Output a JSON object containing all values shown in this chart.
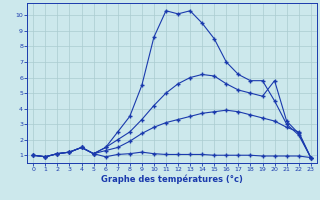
{
  "xlabel": "Graphe des températures (°c)",
  "bg_color": "#cce8ec",
  "line_color": "#1a3aad",
  "grid_color": "#aaccd0",
  "xlim": [
    -0.5,
    23.5
  ],
  "ylim": [
    0.5,
    10.8
  ],
  "xticks": [
    0,
    1,
    2,
    3,
    4,
    5,
    6,
    7,
    8,
    9,
    10,
    11,
    12,
    13,
    14,
    15,
    16,
    17,
    18,
    19,
    20,
    21,
    22,
    23
  ],
  "yticks": [
    1,
    2,
    3,
    4,
    5,
    6,
    7,
    8,
    9,
    10
  ],
  "line1_x": [
    0,
    1,
    2,
    3,
    4,
    5,
    6,
    7,
    8,
    9,
    10,
    11,
    12,
    13,
    14,
    15,
    16,
    17,
    18,
    19,
    20,
    21,
    22,
    23
  ],
  "line1_y": [
    1.0,
    0.9,
    1.1,
    1.2,
    1.5,
    1.1,
    0.9,
    1.05,
    1.1,
    1.2,
    1.1,
    1.05,
    1.05,
    1.05,
    1.05,
    1.0,
    1.0,
    1.0,
    1.0,
    0.95,
    0.95,
    0.95,
    0.95,
    0.85
  ],
  "line2_x": [
    0,
    1,
    2,
    3,
    4,
    5,
    6,
    7,
    8,
    9,
    10,
    11,
    12,
    13,
    14,
    15,
    16,
    17,
    18,
    19,
    20,
    21,
    22,
    23
  ],
  "line2_y": [
    1.0,
    0.9,
    1.1,
    1.2,
    1.5,
    1.1,
    1.3,
    1.5,
    1.9,
    2.4,
    2.8,
    3.1,
    3.3,
    3.5,
    3.7,
    3.8,
    3.9,
    3.8,
    3.6,
    3.4,
    3.2,
    2.8,
    2.5,
    0.85
  ],
  "line3_x": [
    0,
    1,
    2,
    3,
    4,
    5,
    6,
    7,
    8,
    9,
    10,
    11,
    12,
    13,
    14,
    15,
    16,
    17,
    18,
    19,
    20,
    21,
    22,
    23
  ],
  "line3_y": [
    1.0,
    0.9,
    1.1,
    1.2,
    1.5,
    1.1,
    1.5,
    2.0,
    2.5,
    3.3,
    4.2,
    5.0,
    5.6,
    6.0,
    6.2,
    6.1,
    5.6,
    5.2,
    5.0,
    4.8,
    5.8,
    3.2,
    2.4,
    0.85
  ],
  "line4_x": [
    0,
    1,
    2,
    3,
    4,
    5,
    6,
    7,
    8,
    9,
    10,
    11,
    12,
    13,
    14,
    15,
    16,
    17,
    18,
    19,
    20,
    21,
    22,
    23
  ],
  "line4_y": [
    1.0,
    0.9,
    1.1,
    1.2,
    1.5,
    1.1,
    1.5,
    2.5,
    3.5,
    5.5,
    8.6,
    10.3,
    10.1,
    10.3,
    9.5,
    8.5,
    7.0,
    6.2,
    5.8,
    5.8,
    4.5,
    3.0,
    2.3,
    0.85
  ]
}
